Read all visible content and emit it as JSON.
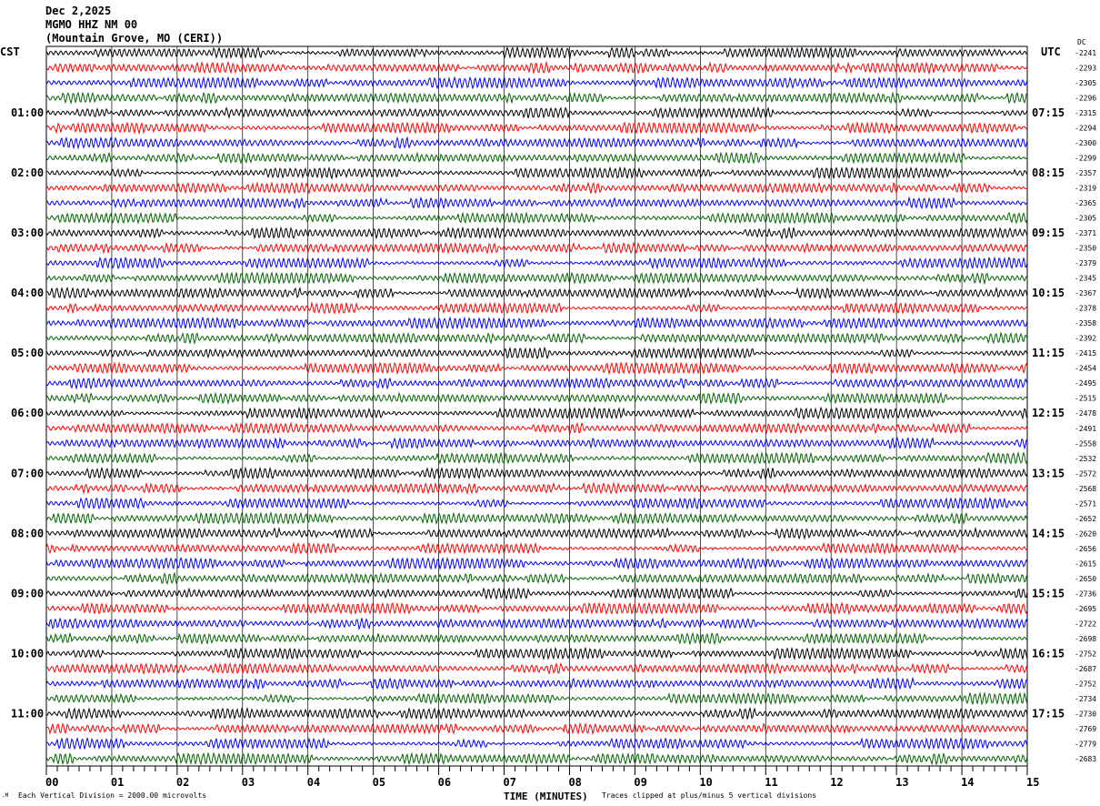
{
  "header": {
    "date": "Dec 2,2025",
    "station": "MGMO HHZ NM 00",
    "location": "(Mountain Grove, MO (CERI))"
  },
  "chart_data": {
    "type": "line",
    "title": "MGMO HHZ NM 00 helicorder",
    "xlabel": "TIME (MINUTES)",
    "xlim": [
      0,
      15
    ],
    "x_ticks": [
      "00",
      "01",
      "02",
      "03",
      "04",
      "05",
      "06",
      "07",
      "08",
      "09",
      "10",
      "11",
      "12",
      "13",
      "14",
      "15"
    ],
    "left_axis_label": "CST",
    "right_axis_label": "UTC",
    "dc_label": "DC",
    "trace_colors": [
      "#000000",
      "#ff0000",
      "#0000ff",
      "#006400"
    ],
    "cst_hours": [
      "01:00",
      "02:00",
      "03:00",
      "04:00",
      "05:00",
      "06:00",
      "07:00",
      "08:00",
      "09:00",
      "10:00",
      "11:00"
    ],
    "utc_hours": [
      "07:15",
      "08:15",
      "09:15",
      "10:15",
      "11:15",
      "12:15",
      "13:15",
      "14:15",
      "15:15",
      "16:15",
      "17:15"
    ],
    "dc_offsets": [
      "-2241",
      "-2293",
      "-2305",
      "-2296",
      "-2315",
      "-2294",
      "-2300",
      "-2299",
      "-2357",
      "-2319",
      "-2365",
      "-2305",
      "-2371",
      "-2350",
      "-2379",
      "-2345",
      "-2367",
      "-2378",
      "-2358",
      "-2392",
      "-2415",
      "-2454",
      "-2495",
      "-2515",
      "-2478",
      "-2491",
      "-2558",
      "-2532",
      "-2572",
      "-2568",
      "-2571",
      "-2652",
      "-2620",
      "-2656",
      "-2615",
      "-2650",
      "-2736",
      "-2695",
      "-2722",
      "-2698",
      "-2752",
      "-2687",
      "-2752",
      "-2734",
      "-2730",
      "-2769",
      "-2779",
      "-2683"
    ],
    "scale_note": "Each Vertical Division = 2000.00 microvolts",
    "clip_note": "Traces clipped at plus/minus 5 vertical divisions"
  }
}
